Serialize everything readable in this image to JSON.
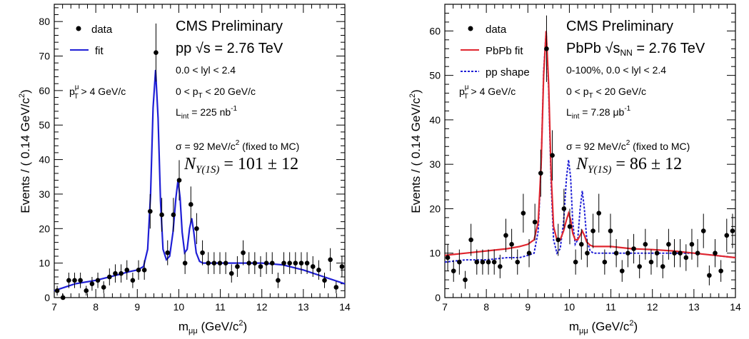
{
  "chart_data": [
    {
      "type": "scatter",
      "x_range": [
        7,
        14
      ],
      "ylim": [
        0,
        85
      ],
      "xlabel_main": "m",
      "xlabel_sub": "μμ",
      "xlabel_unit": "(GeV/c",
      "xlabel_pow": "2",
      "xlabel_close": ")",
      "ylabel": "Events / ( 0.14 GeV/c",
      "ylabel_pow": "2",
      "ylabel_close": ")",
      "x_ticks": [
        "7",
        "8",
        "9",
        "10",
        "11",
        "12",
        "13",
        "14"
      ],
      "y_ticks": [
        "0",
        "10",
        "20",
        "30",
        "40",
        "50",
        "60",
        "70",
        "80"
      ],
      "title": "CMS Preliminary",
      "legend": {
        "data": "data",
        "fit": "fit"
      },
      "ann_system_pre": "pp ",
      "ann_system_sqrt": "√s",
      "ann_system_post": " = 2.76 TeV",
      "ann_rapidity": "0.0 < lyl < 2.4",
      "ann_pt_pre": "0 < p",
      "ann_pt_sub": "T",
      "ann_pt_post": " < 20 GeV/c",
      "ann_lumi_pre": "L",
      "ann_lumi_sub": "int",
      "ann_lumi_post": " =  225 nb",
      "ann_lumi_pow": "-1",
      "ann_sigma_pre": "σ = 92 MeV/c",
      "ann_sigma_pow": "2",
      "ann_sigma_post": " (fixed to MC)",
      "ann_cut_pre": "p",
      "ann_cut_sup": "μ",
      "ann_cut_sub": "T",
      "ann_cut_post": " > 4 GeV/c",
      "n_pre": "N",
      "n_sub": "Υ(1S)",
      "n_post": " = 101 ± 12",
      "fit_color": "#1f1fd6",
      "points": {
        "x": [
          7.07,
          7.21,
          7.35,
          7.49,
          7.63,
          7.77,
          7.91,
          8.05,
          8.19,
          8.33,
          8.47,
          8.61,
          8.75,
          8.89,
          9.03,
          9.17,
          9.31,
          9.45,
          9.59,
          9.73,
          9.87,
          10.01,
          10.15,
          10.29,
          10.43,
          10.57,
          10.71,
          10.85,
          10.99,
          11.13,
          11.27,
          11.41,
          11.55,
          11.69,
          11.83,
          11.97,
          12.11,
          12.25,
          12.39,
          12.53,
          12.67,
          12.81,
          12.95,
          13.09,
          13.23,
          13.37,
          13.51,
          13.65,
          13.79,
          13.93
        ],
        "y": [
          2,
          0,
          5,
          5,
          5,
          2,
          4,
          5,
          3,
          6,
          7,
          7,
          8,
          5,
          8,
          8,
          25,
          71,
          24,
          13,
          24,
          34,
          10,
          27,
          20,
          13,
          10,
          10,
          10,
          10,
          7,
          9,
          13,
          10,
          10,
          9,
          10,
          10,
          5,
          10,
          10,
          10,
          10,
          10,
          9,
          8,
          5,
          11,
          3,
          9
        ]
      },
      "fit": {
        "x": [
          7.0,
          7.5,
          8.0,
          8.5,
          8.8,
          9.0,
          9.15,
          9.25,
          9.32,
          9.38,
          9.44,
          9.5,
          9.56,
          9.62,
          9.7,
          9.78,
          9.86,
          9.93,
          9.98,
          10.03,
          10.08,
          10.14,
          10.2,
          10.26,
          10.31,
          10.36,
          10.42,
          10.5,
          10.58,
          10.7,
          11.0,
          11.5,
          12.0,
          12.5,
          13.0,
          13.5,
          14.0
        ],
        "y": [
          2,
          4,
          5,
          6.5,
          7.5,
          8,
          9,
          14,
          30,
          55,
          66,
          52,
          28,
          14,
          11,
          12,
          19,
          29,
          34,
          29,
          19,
          13,
          14,
          20,
          23,
          19,
          13,
          10.5,
          10,
          10,
          10,
          10,
          10,
          9.5,
          8,
          6,
          4
        ]
      }
    },
    {
      "type": "scatter",
      "x_range": [
        7,
        14
      ],
      "ylim": [
        0,
        66
      ],
      "xlabel_main": "m",
      "xlabel_sub": "μμ",
      "xlabel_unit": "(GeV/c",
      "xlabel_pow": "2",
      "xlabel_close": ")",
      "ylabel": "Events / ( 0.14 GeV/c",
      "ylabel_pow": "2",
      "ylabel_close": ")",
      "x_ticks": [
        "7",
        "8",
        "9",
        "10",
        "11",
        "12",
        "13",
        "14"
      ],
      "y_ticks": [
        "0",
        "10",
        "20",
        "30",
        "40",
        "50",
        "60"
      ],
      "title": "CMS Preliminary",
      "legend": {
        "data": "data",
        "fit": "PbPb fit",
        "pp": "pp shape"
      },
      "ann_system_pre": "PbPb ",
      "ann_system_sqrt": "√s",
      "ann_system_sqrt_sub": "NN",
      "ann_system_post": " = 2.76 TeV",
      "ann_rapidity": "0-100%, 0.0 < lyl < 2.4",
      "ann_pt_pre": "0 < p",
      "ann_pt_sub": "T",
      "ann_pt_post": " < 20 GeV/c",
      "ann_lumi_pre": "L",
      "ann_lumi_sub": "int",
      "ann_lumi_post": " = 7.28 μb",
      "ann_lumi_pow": "-1",
      "ann_sigma_pre": "σ = 92 MeV/c",
      "ann_sigma_pow": "2",
      "ann_sigma_post": " (fixed to MC)",
      "ann_cut_pre": "p",
      "ann_cut_sup": "μ",
      "ann_cut_sub": "T",
      "ann_cut_post": " > 4 GeV/c",
      "n_pre": "N",
      "n_sub": "Υ(1S)",
      "n_post": " = 86 ± 12",
      "fit_color": "#e0262f",
      "pp_color": "#1f1fd6",
      "points": {
        "x": [
          7.07,
          7.21,
          7.35,
          7.49,
          7.63,
          7.77,
          7.91,
          8.05,
          8.19,
          8.33,
          8.47,
          8.61,
          8.75,
          8.89,
          9.03,
          9.17,
          9.31,
          9.45,
          9.59,
          9.73,
          9.87,
          10.01,
          10.15,
          10.29,
          10.43,
          10.57,
          10.71,
          10.85,
          10.99,
          11.13,
          11.27,
          11.41,
          11.55,
          11.69,
          11.83,
          11.97,
          12.11,
          12.25,
          12.39,
          12.53,
          12.67,
          12.81,
          12.95,
          13.09,
          13.23,
          13.37,
          13.51,
          13.65,
          13.79,
          13.93
        ],
        "y": [
          9,
          6,
          8,
          4,
          13,
          8,
          8,
          8,
          8,
          7,
          14,
          12,
          8,
          19,
          10,
          17,
          28,
          56,
          32,
          13,
          20,
          16,
          8,
          12,
          10,
          15,
          19,
          8,
          15,
          10,
          6,
          10,
          11,
          7,
          12,
          8,
          10,
          7,
          12,
          10,
          10,
          9,
          12,
          10,
          15,
          5,
          10,
          6,
          14,
          15
        ]
      },
      "fit": {
        "x": [
          7.0,
          7.5,
          8.0,
          8.5,
          8.8,
          9.0,
          9.15,
          9.25,
          9.32,
          9.38,
          9.44,
          9.5,
          9.56,
          9.62,
          9.7,
          9.78,
          9.86,
          9.93,
          9.98,
          10.03,
          10.08,
          10.14,
          10.2,
          10.26,
          10.31,
          10.36,
          10.42,
          10.5,
          10.58,
          10.7,
          11.0,
          11.5,
          12.0,
          12.5,
          13.0,
          13.5,
          14.0
        ],
        "y": [
          9.5,
          10,
          10.5,
          11,
          11.5,
          12,
          13,
          17,
          30,
          50,
          60,
          48,
          28,
          16,
          13,
          13,
          15,
          17.5,
          19,
          17.5,
          14.5,
          13,
          13,
          14,
          15,
          14,
          12.5,
          11.8,
          11.5,
          11.5,
          11.5,
          11,
          10.8,
          10.5,
          10,
          9.5,
          9
        ]
      },
      "pp": {
        "x": [
          7.0,
          7.5,
          8.0,
          8.5,
          8.8,
          9.0,
          9.15,
          9.25,
          9.32,
          9.38,
          9.44,
          9.5,
          9.56,
          9.62,
          9.7,
          9.78,
          9.86,
          9.93,
          9.98,
          10.03,
          10.08,
          10.14,
          10.2,
          10.26,
          10.31,
          10.36,
          10.42,
          10.5,
          10.58,
          10.7,
          11.0,
          11.5,
          12.0,
          12.5,
          13.0,
          13.5,
          14.0
        ],
        "y": [
          8,
          8.5,
          8.5,
          9,
          9,
          9.5,
          10,
          15,
          30,
          51,
          60,
          47,
          26,
          13,
          10,
          11,
          17,
          27,
          31,
          27,
          17,
          12,
          13,
          20,
          24,
          20,
          13,
          10.5,
          10,
          10,
          10,
          10,
          10,
          10,
          10,
          9.5,
          9
        ]
      }
    }
  ]
}
